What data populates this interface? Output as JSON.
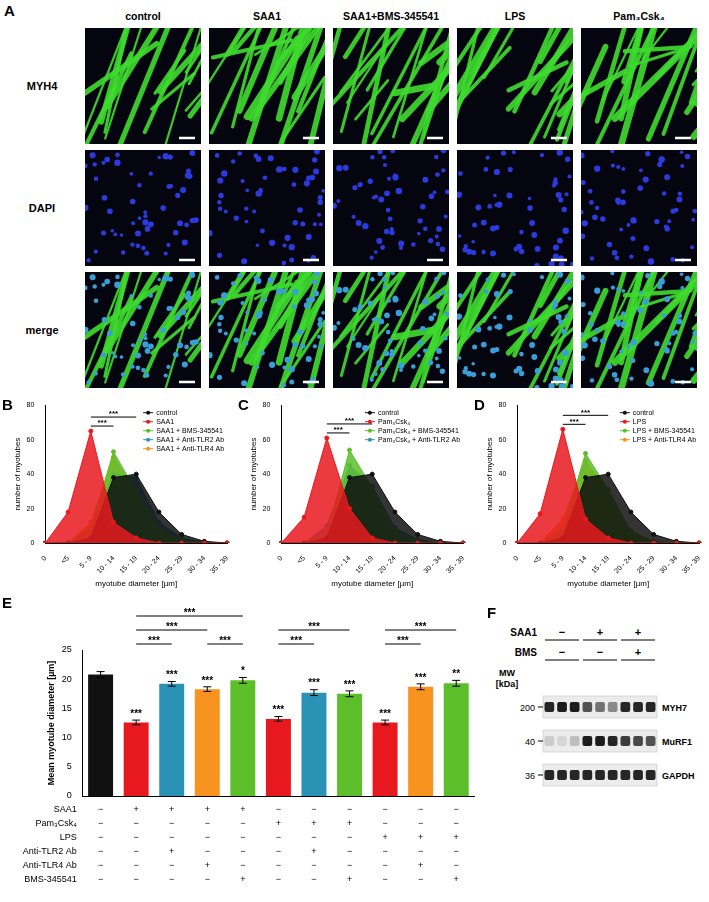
{
  "figure": {
    "panel_A": {
      "panel_label": "A",
      "columns": [
        "control",
        "SAA1",
        "SAA1+BMS-345541",
        "LPS",
        "Pam₃Csk₄"
      ],
      "rows": [
        "MYH4",
        "DAPI",
        "merge"
      ]
    },
    "panel_F": {
      "panel_label": "F",
      "conditions": [
        {
          "label": "SAA1",
          "signs": [
            "−",
            "+",
            "+"
          ]
        },
        {
          "label": "BMS",
          "signs": [
            "−",
            "−",
            "+"
          ]
        }
      ],
      "mw_label": [
        "MW",
        "[kDa]"
      ],
      "bands": [
        {
          "label": "MYH7",
          "mw": 200,
          "intensity": [
            0.9,
            0.95,
            0.95,
            0.7,
            0.55,
            0.45,
            0.9,
            0.9,
            0.9
          ]
        },
        {
          "label": "MuRF1",
          "mw": 40,
          "intensity": [
            0.15,
            0.1,
            0.2,
            0.95,
            0.95,
            0.9,
            0.8,
            0.75,
            0.7
          ]
        },
        {
          "label": "GAPDH",
          "mw": 36,
          "intensity": [
            0.9,
            0.9,
            0.9,
            0.9,
            0.9,
            0.9,
            0.9,
            0.9,
            0.9
          ]
        }
      ]
    }
  },
  "chart_data": [
    {
      "panel_label": "B",
      "type": "line",
      "x_label": "myotube diameter [µm]",
      "y_label": "number of myotubes",
      "categories": [
        "0",
        "<5",
        "5 - 9",
        "10 - 14",
        "15 - 19",
        "20 - 24",
        "25 - 29",
        "30 - 34",
        "35 - 39"
      ],
      "ylim": [
        0,
        80
      ],
      "yticks": [
        0,
        20,
        40,
        60,
        80
      ],
      "grid": false,
      "legend": "upper right",
      "marker": "circle",
      "series": [
        {
          "name": "control",
          "color": "#111111",
          "values": [
            0,
            0,
            3,
            38,
            40,
            18,
            5,
            1,
            0
          ]
        },
        {
          "name": "SAA1",
          "color": "#e8191e",
          "values": [
            0,
            18,
            65,
            12,
            3,
            0,
            0,
            0,
            0
          ]
        },
        {
          "name": "SAA1 + BMS-345541",
          "color": "#5cbf2a",
          "values": [
            0,
            0,
            9,
            53,
            30,
            8,
            2,
            0,
            0
          ]
        },
        {
          "name": "SAA1 + Anti-TLR2 Ab",
          "color": "#2a93b5",
          "values": [
            0,
            0,
            5,
            40,
            38,
            12,
            3,
            0,
            0
          ]
        },
        {
          "name": "SAA1 + Anti-TLR4 Ab",
          "color": "#f7931e",
          "values": [
            0,
            0,
            12,
            50,
            28,
            8,
            1,
            0,
            0
          ]
        }
      ],
      "annotations": [
        {
          "text": "***",
          "from": "5 - 9",
          "to": "10 - 14"
        },
        {
          "text": "***",
          "from": "5 - 9",
          "to": "15 - 19"
        }
      ]
    },
    {
      "panel_label": "C",
      "type": "line",
      "x_label": "myotube diameter [µm]",
      "y_label": "number of myotubes",
      "categories": [
        "0",
        "<5",
        "5 - 9",
        "10 - 14",
        "15 - 19",
        "20 - 24",
        "25 - 29",
        "30 - 34",
        "35 - 39"
      ],
      "ylim": [
        0,
        80
      ],
      "yticks": [
        0,
        20,
        40,
        60,
        80
      ],
      "grid": false,
      "legend": "upper right",
      "marker": "circle",
      "series": [
        {
          "name": "control",
          "color": "#111111",
          "values": [
            0,
            0,
            3,
            38,
            40,
            18,
            5,
            1,
            0
          ]
        },
        {
          "name": "Pam₃Csk₄",
          "color": "#e8191e",
          "values": [
            0,
            15,
            61,
            20,
            3,
            0,
            0,
            0,
            0
          ]
        },
        {
          "name": "Pam₃Csk₄ + BMS-345541",
          "color": "#5cbf2a",
          "values": [
            0,
            0,
            5,
            54,
            32,
            7,
            1,
            0,
            0
          ]
        },
        {
          "name": "Pam₃Csk₄ + Anti-TLR2 Ab",
          "color": "#2a93b5",
          "values": [
            0,
            0,
            10,
            45,
            33,
            9,
            2,
            0,
            0
          ]
        }
      ],
      "annotations": [
        {
          "text": "***",
          "from": "5 - 9",
          "to": "10 - 14"
        },
        {
          "text": "***",
          "from": "5 - 9",
          "to": "15 - 19"
        }
      ]
    },
    {
      "panel_label": "D",
      "type": "line",
      "x_label": "myotube diameter [µm]",
      "y_label": "number of myotubes",
      "categories": [
        "0",
        "<5",
        "5 - 9",
        "10 - 14",
        "15 - 19",
        "20 - 24",
        "25 - 29",
        "30 - 34",
        "35 - 39"
      ],
      "ylim": [
        0,
        80
      ],
      "yticks": [
        0,
        20,
        40,
        60,
        80
      ],
      "grid": false,
      "legend": "upper right",
      "marker": "circle",
      "series": [
        {
          "name": "control",
          "color": "#111111",
          "values": [
            0,
            0,
            3,
            38,
            40,
            18,
            5,
            1,
            0
          ]
        },
        {
          "name": "LPS",
          "color": "#e8191e",
          "values": [
            0,
            17,
            66,
            14,
            3,
            0,
            0,
            0,
            0
          ]
        },
        {
          "name": "LPS + BMS-345541",
          "color": "#5cbf2a",
          "values": [
            0,
            0,
            8,
            52,
            31,
            7,
            1,
            0,
            0
          ]
        },
        {
          "name": "LPS + Anti-TLR4 Ab",
          "color": "#f7931e",
          "values": [
            0,
            0,
            14,
            48,
            30,
            6,
            1,
            0,
            0
          ]
        }
      ],
      "annotations": [
        {
          "text": "***",
          "from": "5 - 9",
          "to": "10 - 14"
        },
        {
          "text": "***",
          "from": "5 - 9",
          "to": "15 - 19"
        }
      ]
    },
    {
      "panel_label": "E",
      "type": "bar",
      "y_label": "Mean myotube diameter [µm]",
      "categories": [
        null,
        null,
        null,
        null,
        null,
        null,
        null,
        null,
        null,
        null,
        null
      ],
      "values": [
        20.8,
        12.6,
        19.2,
        18.3,
        19.8,
        13.2,
        17.7,
        17.5,
        12.6,
        18.7,
        19.3
      ],
      "errors": [
        0.5,
        0.4,
        0.4,
        0.4,
        0.5,
        0.4,
        0.5,
        0.5,
        0.4,
        0.5,
        0.5
      ],
      "colors": [
        "#111111",
        "#e8191e",
        "#2a93b5",
        "#f7931e",
        "#5cbf2a",
        "#e8191e",
        "#2a93b5",
        "#5cbf2a",
        "#e8191e",
        "#f7931e",
        "#5cbf2a"
      ],
      "significance": [
        null,
        "***",
        "***",
        "***",
        "*",
        "***",
        "***",
        "***",
        "***",
        "***",
        "**"
      ],
      "ylim": [
        0,
        25
      ],
      "yticks": [
        0,
        5,
        10,
        15,
        20,
        25
      ],
      "grid": false,
      "annotations": [
        {
          "text": "***",
          "from": 1,
          "to": 4
        },
        {
          "text": "***",
          "from": 1,
          "to": 3
        },
        {
          "text": "***",
          "from": 1,
          "to": 2
        },
        {
          "text": "***",
          "from": 3,
          "to": 4
        },
        {
          "text": "***",
          "from": 5,
          "to": 7
        },
        {
          "text": "***",
          "from": 5,
          "to": 6
        },
        {
          "text": "***",
          "from": 8,
          "to": 10
        },
        {
          "text": "***",
          "from": 8,
          "to": 9
        }
      ],
      "conditions": [
        {
          "label": "SAA1",
          "signs": [
            "−",
            "+",
            "+",
            "+",
            "+",
            "−",
            "−",
            "−",
            "−",
            "−",
            "−"
          ]
        },
        {
          "label": "Pam₃Csk₄",
          "signs": [
            "−",
            "−",
            "−",
            "−",
            "−",
            "+",
            "+",
            "+",
            "−",
            "−",
            "−"
          ]
        },
        {
          "label": "LPS",
          "signs": [
            "−",
            "−",
            "−",
            "−",
            "−",
            "−",
            "−",
            "−",
            "+",
            "+",
            "+"
          ]
        },
        {
          "label": "Anti-TLR2 Ab",
          "signs": [
            "−",
            "−",
            "+",
            "−",
            "−",
            "−",
            "+",
            "−",
            "−",
            "−",
            "−"
          ]
        },
        {
          "label": "Anti-TLR4 Ab",
          "signs": [
            "−",
            "−",
            "−",
            "+",
            "−",
            "−",
            "−",
            "−",
            "−",
            "+",
            "−"
          ]
        },
        {
          "label": "BMS-345541",
          "signs": [
            "−",
            "−",
            "−",
            "−",
            "+",
            "−",
            "−",
            "+",
            "−",
            "−",
            "+"
          ]
        }
      ]
    }
  ]
}
